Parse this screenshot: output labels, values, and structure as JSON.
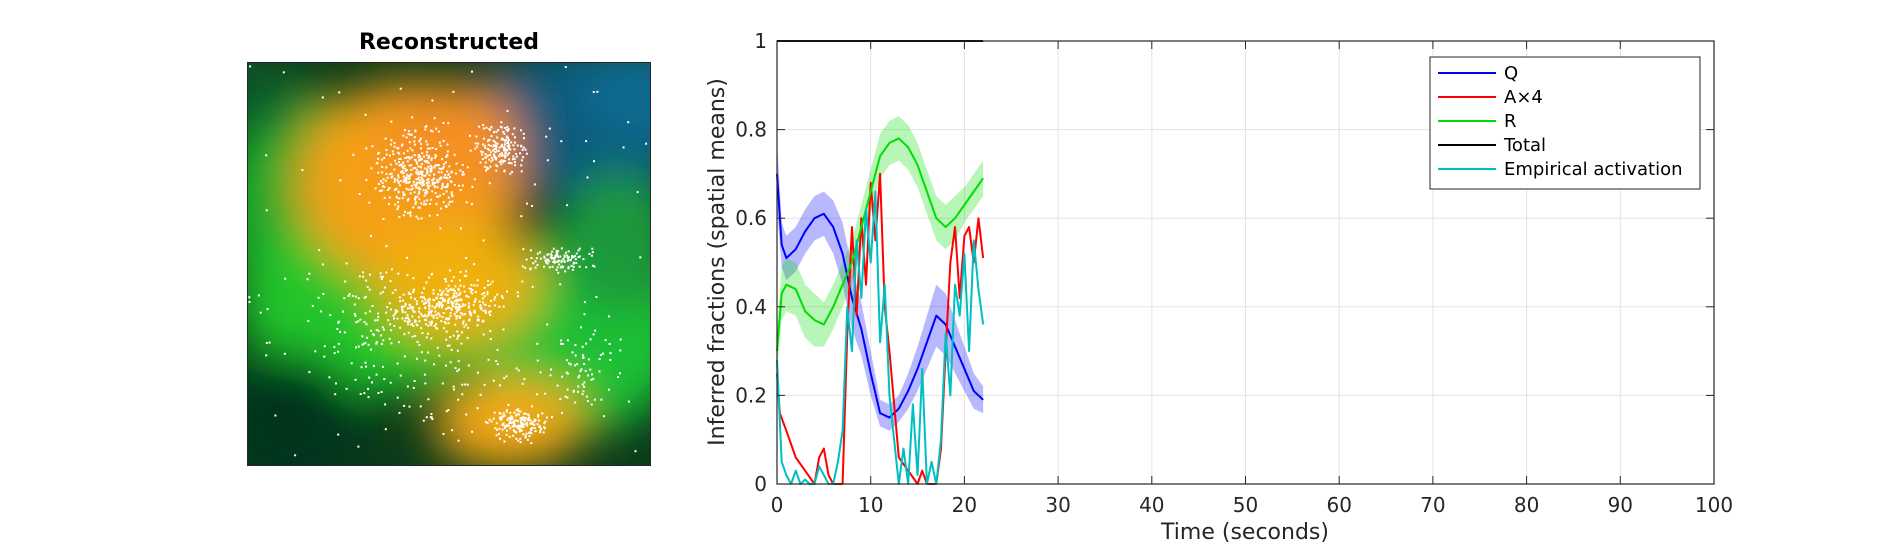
{
  "left_panel": {
    "title": "Reconstructed"
  },
  "colors": {
    "Q": "#0000ff",
    "A": "#ff0000",
    "R": "#00dd00",
    "Total": "#000000",
    "Empirical": "#00bfc0"
  },
  "chart_data": {
    "type": "line",
    "xlabel": "Time (seconds)",
    "ylabel": "Inferred fractions (spatial means)",
    "xlim": [
      0,
      100
    ],
    "ylim": [
      0,
      1
    ],
    "xticks": [
      0,
      10,
      20,
      30,
      40,
      50,
      60,
      70,
      80,
      90,
      100
    ],
    "yticks": [
      0,
      0.2,
      0.4,
      0.6,
      0.8,
      1
    ],
    "grid": true,
    "legend_position": "top-right",
    "series": [
      {
        "name": "Q",
        "color": "#0000ff",
        "x": [
          0,
          0.5,
          1,
          2,
          3,
          4,
          5,
          6,
          7,
          8,
          9,
          10,
          11,
          12,
          13,
          14,
          15,
          16,
          17,
          18,
          19,
          20,
          21,
          22
        ],
        "y": [
          0.7,
          0.54,
          0.51,
          0.53,
          0.57,
          0.6,
          0.61,
          0.58,
          0.52,
          0.42,
          0.35,
          0.25,
          0.16,
          0.15,
          0.17,
          0.21,
          0.26,
          0.32,
          0.38,
          0.36,
          0.31,
          0.26,
          0.21,
          0.19
        ],
        "band": [
          0.08,
          0.05,
          0.05,
          0.05,
          0.05,
          0.05,
          0.05,
          0.06,
          0.07,
          0.07,
          0.06,
          0.05,
          0.03,
          0.03,
          0.03,
          0.04,
          0.05,
          0.06,
          0.07,
          0.07,
          0.06,
          0.05,
          0.04,
          0.03
        ]
      },
      {
        "name": "A×4",
        "color": "#ff0000",
        "x": [
          0,
          0.3,
          1,
          2,
          3,
          4,
          4.5,
          5,
          5.5,
          6,
          7,
          7.5,
          8,
          8.5,
          9,
          9.5,
          10,
          10.5,
          11,
          11.5,
          12,
          12.5,
          13,
          14,
          15,
          15.5,
          16,
          16.5,
          17,
          17.5,
          18,
          18.5,
          19,
          19.5,
          20,
          20.5,
          21,
          21.5,
          22
        ],
        "y": [
          0.25,
          0.16,
          0.12,
          0.06,
          0.03,
          0.0,
          0.06,
          0.08,
          0.02,
          0.0,
          0.0,
          0.34,
          0.58,
          0.38,
          0.6,
          0.45,
          0.68,
          0.55,
          0.7,
          0.4,
          0.3,
          0.18,
          0.06,
          0.03,
          0.0,
          0.03,
          0.0,
          0.0,
          0.0,
          0.08,
          0.3,
          0.5,
          0.58,
          0.42,
          0.56,
          0.58,
          0.5,
          0.6,
          0.51
        ],
        "band": []
      },
      {
        "name": "R",
        "color": "#00dd00",
        "x": [
          0,
          0.5,
          1,
          2,
          3,
          4,
          5,
          6,
          7,
          8,
          9,
          10,
          11,
          12,
          13,
          14,
          15,
          16,
          17,
          18,
          19,
          20,
          21,
          22
        ],
        "y": [
          0.3,
          0.43,
          0.45,
          0.44,
          0.39,
          0.37,
          0.36,
          0.4,
          0.45,
          0.5,
          0.58,
          0.66,
          0.74,
          0.77,
          0.78,
          0.76,
          0.72,
          0.66,
          0.6,
          0.58,
          0.6,
          0.63,
          0.66,
          0.69
        ],
        "band": [
          0.05,
          0.06,
          0.06,
          0.06,
          0.06,
          0.06,
          0.05,
          0.05,
          0.05,
          0.05,
          0.05,
          0.05,
          0.05,
          0.05,
          0.05,
          0.05,
          0.05,
          0.05,
          0.05,
          0.05,
          0.05,
          0.04,
          0.04,
          0.04
        ]
      },
      {
        "name": "Total",
        "color": "#000000",
        "x": [
          0,
          22
        ],
        "y": [
          1.0,
          1.0
        ],
        "band": []
      },
      {
        "name": "Empirical activation",
        "color": "#00bfc0",
        "x": [
          0,
          0.5,
          1,
          1.5,
          2,
          2.5,
          3,
          3.5,
          4,
          4.5,
          5,
          5.5,
          6,
          6.5,
          7,
          7.5,
          8,
          8.5,
          9,
          9.5,
          10,
          10.5,
          11,
          11.5,
          12,
          12.5,
          13,
          13.5,
          14,
          14.5,
          15,
          15.5,
          16,
          16.5,
          17,
          17.5,
          18,
          18.5,
          19,
          19.5,
          20,
          20.5,
          21,
          21.5,
          22
        ],
        "y": [
          0.28,
          0.05,
          0.02,
          0.0,
          0.03,
          0.0,
          0.01,
          0.0,
          0.0,
          0.04,
          0.02,
          0.0,
          0.0,
          0.05,
          0.12,
          0.4,
          0.3,
          0.55,
          0.42,
          0.62,
          0.5,
          0.66,
          0.32,
          0.45,
          0.2,
          0.1,
          0.0,
          0.08,
          0.0,
          0.18,
          0.02,
          0.26,
          0.0,
          0.05,
          0.0,
          0.1,
          0.34,
          0.2,
          0.45,
          0.38,
          0.52,
          0.3,
          0.55,
          0.44,
          0.36
        ],
        "band": []
      }
    ]
  }
}
